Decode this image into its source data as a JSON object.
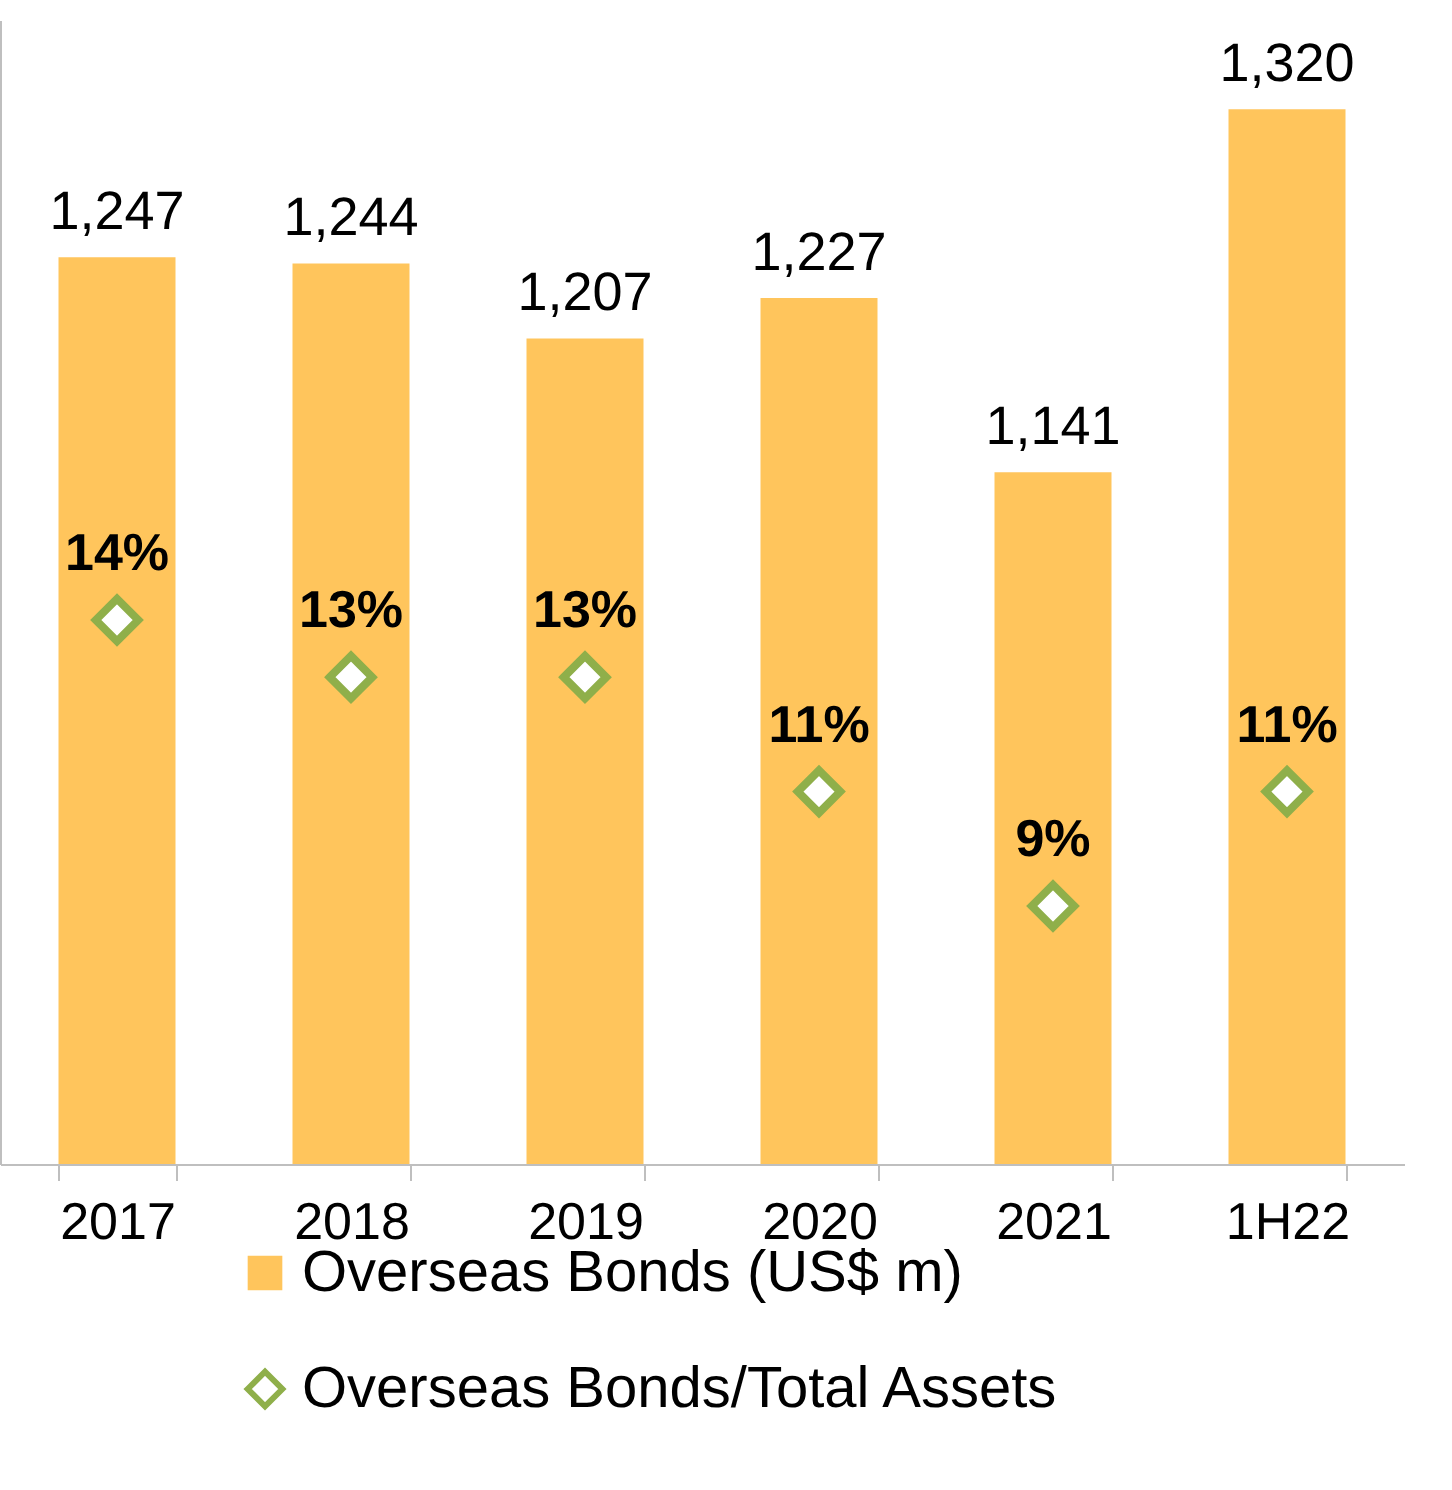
{
  "chart_data": {
    "type": "bar",
    "categories": [
      "2017",
      "2018",
      "2019",
      "2020",
      "2021",
      "1H22"
    ],
    "series": [
      {
        "name": "Overseas Bonds (US$ m)",
        "color": "#ffc55c",
        "values": [
          1247,
          1244,
          1207,
          1227,
          1141,
          1320
        ],
        "value_labels": [
          "1,247",
          "1,244",
          "1,207",
          "1,227",
          "1,141",
          "1,320"
        ]
      },
      {
        "name": "Overseas Bonds/Total Assets",
        "type": "scatter",
        "axis": "y2",
        "color": "#8faf4a",
        "values": [
          14,
          13,
          13,
          11,
          9,
          11
        ],
        "value_labels": [
          "14%",
          "13%",
          "13%",
          "11%",
          "9%",
          "11%"
        ]
      }
    ],
    "ylim": [
      800,
      1364
    ],
    "tick_labels": "x",
    "legend": "bottom",
    "grid": false,
    "marker": "diamond"
  }
}
